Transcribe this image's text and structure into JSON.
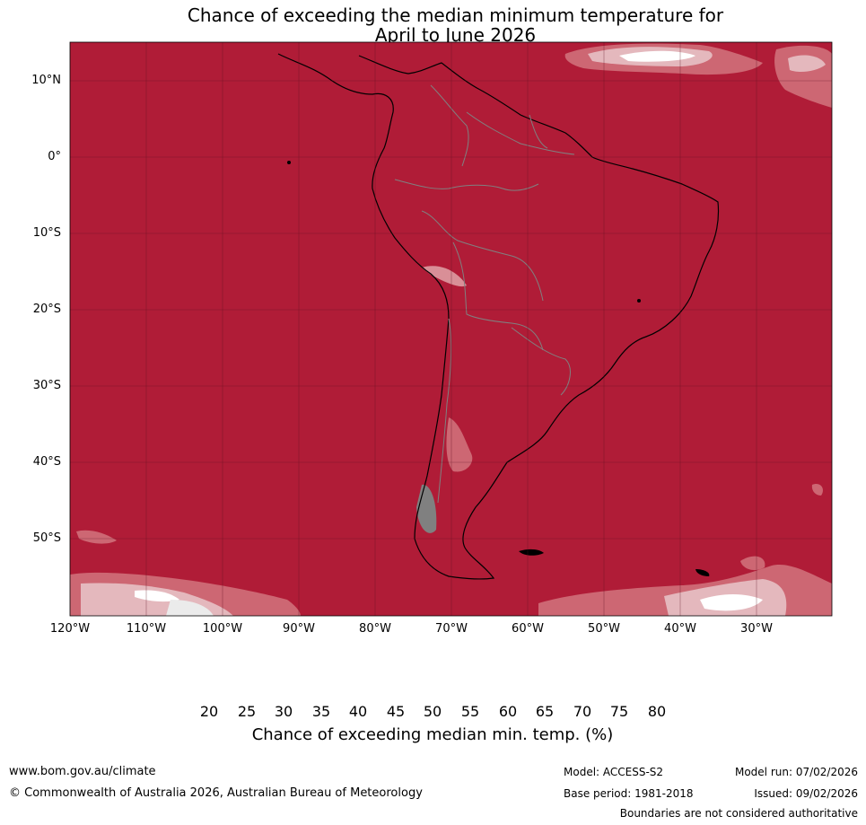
{
  "title": {
    "line1": "Chance of exceeding the median minimum temperature for",
    "line2": "April to June 2026"
  },
  "map": {
    "region": "South America",
    "latitude_labels": [
      "10°N",
      "0°",
      "10°S",
      "20°S",
      "30°S",
      "40°S",
      "50°S"
    ],
    "longitude_labels": [
      "120°W",
      "110°W",
      "100°W",
      "90°W",
      "80°W",
      "70°W",
      "60°W",
      "50°W",
      "40°W",
      "30°W"
    ],
    "dominant_category": "80",
    "colors": {
      "above_80": "#b01c37",
      "c75_80": "#c24456",
      "c70_75": "#cd6773",
      "c65_70": "#d98f97",
      "c60_65": "#e4b8bd",
      "c55_60": "#ebebeb",
      "c45_55": "#ffffff",
      "c40_45": "#e8eef0",
      "c35_40": "#ccd8dc",
      "c30_35": "#a9c7cc",
      "c25_30": "#8ab8c3",
      "c20_25": "#6aaebd",
      "below_20": "#4ea0b0",
      "coastline": "#000000",
      "borders": "#808080",
      "gridlines": "#5a1020"
    }
  },
  "colorbar": {
    "ticks": [
      "20",
      "25",
      "30",
      "35",
      "40",
      "45",
      "50",
      "55",
      "60",
      "65",
      "70",
      "75",
      "80"
    ],
    "label": "Chance of exceeding median min. temp. (%)"
  },
  "footer": {
    "url": "www.bom.gov.au/climate",
    "copyright": "© Commonwealth of Australia 2026, Australian Bureau of Meteorology",
    "model": "Model: ACCESS-S2",
    "base_period": "Base period: 1981-2018",
    "model_run": "Model run: 07/02/2026",
    "issued": "Issued: 09/02/2026",
    "disclaimer": "Boundaries are not considered authoritative"
  }
}
